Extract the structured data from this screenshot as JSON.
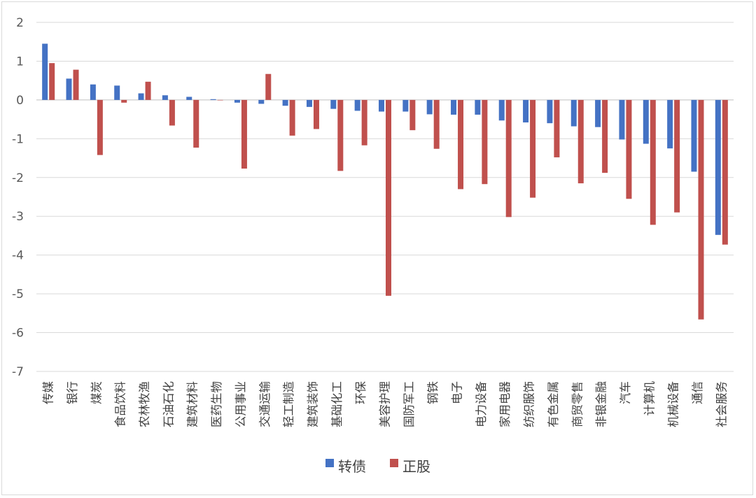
{
  "chart_data": {
    "type": "bar",
    "title": "",
    "xlabel": "",
    "ylabel": "",
    "ylim": [
      -7,
      2
    ],
    "yticks": [
      2,
      1,
      0,
      -1,
      -2,
      -3,
      -4,
      -5,
      -6,
      -7
    ],
    "grid": true,
    "legend_position": "bottom-center",
    "categories": [
      "传媒",
      "银行",
      "煤炭",
      "食品饮料",
      "农林牧渔",
      "石油石化",
      "建筑材料",
      "医药生物",
      "公用事业",
      "交通运输",
      "轻工制造",
      "建筑装饰",
      "基础化工",
      "环保",
      "美容护理",
      "国防军工",
      "钢铁",
      "电子",
      "电力设备",
      "家用电器",
      "纺织服饰",
      "有色金属",
      "商贸零售",
      "非银金融",
      "汽车",
      "计算机",
      "机械设备",
      "通信",
      "社会服务"
    ],
    "series": [
      {
        "name": "转债",
        "color": "#4472C4",
        "values": [
          1.45,
          0.55,
          0.4,
          0.37,
          0.17,
          0.12,
          0.08,
          0.02,
          -0.07,
          -0.1,
          -0.15,
          -0.18,
          -0.23,
          -0.28,
          -0.3,
          -0.3,
          -0.37,
          -0.38,
          -0.38,
          -0.53,
          -0.58,
          -0.6,
          -0.68,
          -0.7,
          -1.02,
          -1.13,
          -1.25,
          -1.85,
          -3.48
        ]
      },
      {
        "name": "正股",
        "color": "#C0504D",
        "values": [
          0.95,
          0.78,
          -1.42,
          -0.07,
          0.47,
          -0.66,
          -1.23,
          0.0,
          -1.77,
          0.67,
          -0.92,
          -0.75,
          -1.83,
          -1.17,
          -5.05,
          -0.78,
          -1.26,
          -2.3,
          -2.17,
          -3.02,
          -2.52,
          -1.48,
          -2.15,
          -1.88,
          -2.55,
          -3.22,
          -2.9,
          -5.66,
          -3.73
        ]
      }
    ]
  }
}
